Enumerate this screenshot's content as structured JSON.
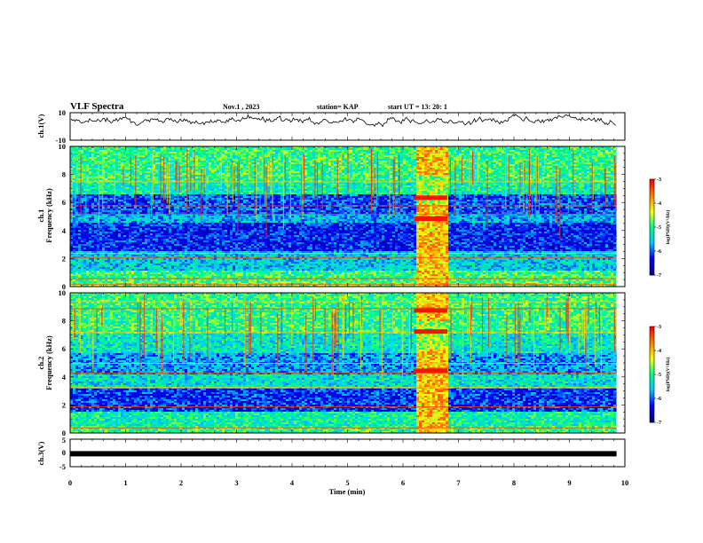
{
  "header": {
    "title": "VLF Spectra",
    "date": "Nov.1 , 2023",
    "station": "station= KAP",
    "start": "start UT = 13: 20: 1"
  },
  "chart_data": [
    {
      "type": "line",
      "panel": "ch1-waveform",
      "ylabel": "ch.1(V)",
      "ylim": [
        -10,
        10
      ],
      "yticks": [
        "10",
        "-10"
      ],
      "xlim": [
        0,
        10
      ],
      "description_values": "noisy waveform fluctuating between about 0 and 10 V"
    },
    {
      "type": "heatmap",
      "panel": "ch1-spectrogram",
      "ylabel": "ch.1 Frequency (kHz)",
      "ylim": [
        0,
        10
      ],
      "yticks": [
        "0",
        "2",
        "4",
        "6",
        "8",
        "10"
      ],
      "xlim": [
        0,
        10
      ],
      "data_end_min": 9.85,
      "burst_interval_min": [
        6.2,
        6.8
      ],
      "colorbar": {
        "label": "log(PSD)(V²/Hz)",
        "range": [
          -7,
          -3
        ],
        "ticks": [
          "-3",
          "-4",
          "-5",
          "-6",
          "-7"
        ]
      }
    },
    {
      "type": "heatmap",
      "panel": "ch2-spectrogram",
      "ylabel": "ch.2 Frequency (kHz)",
      "ylim": [
        0,
        10
      ],
      "yticks": [
        "0",
        "2",
        "4",
        "6",
        "8",
        "10"
      ],
      "xlim": [
        0,
        10
      ],
      "data_end_min": 9.85,
      "burst_interval_min": [
        6.2,
        6.8
      ],
      "colorbar": {
        "label": "log(PSD)(V²/Hz)",
        "range": [
          -7,
          -3
        ],
        "ticks": [
          "-3",
          "-4",
          "-5",
          "-6",
          "-7"
        ]
      }
    },
    {
      "type": "line",
      "panel": "ch3-waveform",
      "ylabel": "ch.3(V)",
      "ylim": [
        -5,
        5
      ],
      "yticks": [
        "5",
        "0",
        "-5"
      ],
      "xlim": [
        0,
        10
      ],
      "level_value": -0.3
    }
  ],
  "xaxis": {
    "label": "Time (min)",
    "ticks": [
      "0",
      "1",
      "2",
      "3",
      "4",
      "5",
      "6",
      "7",
      "8",
      "9",
      "10"
    ]
  },
  "colors": {
    "scale": [
      "#00008b",
      "#0000ff",
      "#00c8ff",
      "#00ff80",
      "#ffff00",
      "#ff8000",
      "#ff0000"
    ]
  }
}
